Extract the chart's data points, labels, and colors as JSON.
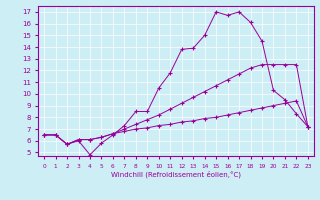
{
  "xlabel": "Windchill (Refroidissement éolien,°C)",
  "background_color": "#cdeef5",
  "line_color": "#990099",
  "xlim": [
    -0.5,
    23.5
  ],
  "ylim": [
    4.7,
    17.5
  ],
  "xticks": [
    0,
    1,
    2,
    3,
    4,
    5,
    6,
    7,
    8,
    9,
    10,
    11,
    12,
    13,
    14,
    15,
    16,
    17,
    18,
    19,
    20,
    21,
    22,
    23
  ],
  "yticks": [
    5,
    6,
    7,
    8,
    9,
    10,
    11,
    12,
    13,
    14,
    15,
    16,
    17
  ],
  "series": [
    {
      "x": [
        0,
        1,
        2,
        3,
        4,
        5,
        6,
        7,
        8,
        9,
        10,
        11,
        12,
        13,
        14,
        15,
        16,
        17,
        18,
        19,
        20,
        21,
        22,
        23
      ],
      "y": [
        6.5,
        6.5,
        5.7,
        6.0,
        4.8,
        5.8,
        6.5,
        7.3,
        8.5,
        8.5,
        10.5,
        11.8,
        13.8,
        13.9,
        15.0,
        17.0,
        16.7,
        17.0,
        16.1,
        14.5,
        10.3,
        9.5,
        8.3,
        7.2
      ]
    },
    {
      "x": [
        0,
        1,
        2,
        3,
        4,
        5,
        6,
        7,
        8,
        9,
        10,
        11,
        12,
        13,
        14,
        15,
        16,
        17,
        18,
        19,
        20,
        21,
        22,
        23
      ],
      "y": [
        6.5,
        6.5,
        5.7,
        6.1,
        6.1,
        6.3,
        6.6,
        7.0,
        7.4,
        7.8,
        8.2,
        8.7,
        9.2,
        9.7,
        10.2,
        10.7,
        11.2,
        11.7,
        12.2,
        12.5,
        12.5,
        12.5,
        12.5,
        7.2
      ]
    },
    {
      "x": [
        0,
        1,
        2,
        3,
        4,
        5,
        6,
        7,
        8,
        9,
        10,
        11,
        12,
        13,
        14,
        15,
        16,
        17,
        18,
        19,
        20,
        21,
        22,
        23
      ],
      "y": [
        6.5,
        6.5,
        5.7,
        6.1,
        6.1,
        6.3,
        6.6,
        6.8,
        7.0,
        7.1,
        7.3,
        7.4,
        7.6,
        7.7,
        7.9,
        8.0,
        8.2,
        8.4,
        8.6,
        8.8,
        9.0,
        9.2,
        9.4,
        7.2
      ]
    }
  ]
}
